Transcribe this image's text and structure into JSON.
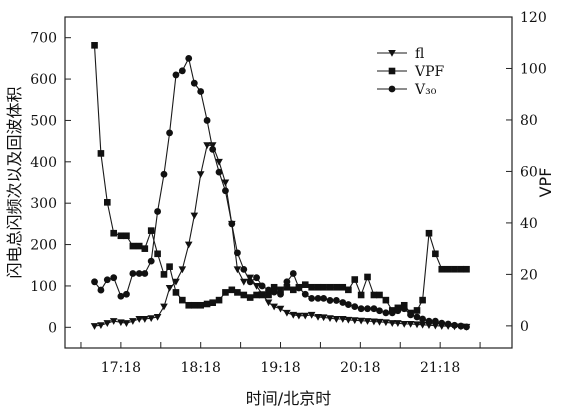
{
  "chart_data": {
    "type": "line",
    "xlabel": "时间/北京时",
    "ylabel_left": "闪电总闪频次以及回波体积",
    "ylabel_right": "VPF",
    "xlim": [
      16.6,
      22.2
    ],
    "ylim_left": [
      -50,
      750
    ],
    "ylim_right": [
      -8.6,
      120
    ],
    "x_ticks": [
      17.3,
      18.3,
      19.3,
      20.3,
      21.3
    ],
    "x_tick_labels": [
      "17:18",
      "18:18",
      "19:18",
      "20:18",
      "21:18"
    ],
    "x_minor_ticks": [
      16.8,
      17.8,
      18.8,
      19.8,
      20.8,
      21.8
    ],
    "y_ticks_left": [
      0,
      100,
      200,
      300,
      400,
      500,
      600,
      700
    ],
    "y_tick_labels_left": [
      "0",
      "100",
      "200",
      "300",
      "400",
      "500",
      "600",
      "700"
    ],
    "y_ticks_right": [
      0,
      20,
      40,
      60,
      80,
      100,
      120
    ],
    "y_tick_labels_right": [
      "0",
      "20",
      "40",
      "60",
      "80",
      "100",
      "120"
    ],
    "legend_position": "top-right",
    "series": [
      {
        "name": "fl",
        "axis": "left",
        "marker": "triangle-down",
        "x": [
          16.97,
          17.05,
          17.13,
          17.21,
          17.3,
          17.37,
          17.45,
          17.53,
          17.6,
          17.68,
          17.76,
          17.84,
          17.91,
          17.99,
          18.07,
          18.15,
          18.22,
          18.3,
          18.38,
          18.45,
          18.53,
          18.61,
          18.69,
          18.76,
          18.84,
          18.92,
          19.0,
          19.07,
          19.15,
          19.22,
          19.3,
          19.38,
          19.46,
          19.53,
          19.61,
          19.69,
          19.77,
          19.84,
          19.92,
          20.0,
          20.08,
          20.15,
          20.23,
          20.31,
          20.39,
          20.47,
          20.54,
          20.62,
          20.7,
          20.77,
          20.85,
          20.93,
          21.01,
          21.08,
          21.16,
          21.24,
          21.32,
          21.4,
          21.48,
          21.56,
          21.63
        ],
        "values": [
          3,
          5,
          10,
          15,
          12,
          10,
          15,
          20,
          20,
          22,
          25,
          50,
          95,
          110,
          140,
          200,
          270,
          370,
          440,
          440,
          400,
          350,
          250,
          140,
          110,
          120,
          100,
          80,
          60,
          50,
          45,
          35,
          30,
          28,
          28,
          30,
          25,
          24,
          22,
          20,
          20,
          18,
          17,
          16,
          15,
          14,
          13,
          12,
          10,
          10,
          8,
          8,
          7,
          6,
          5,
          4,
          3,
          3,
          2,
          2,
          1
        ]
      },
      {
        "name": "VPF",
        "axis": "right",
        "marker": "square",
        "x": [
          16.97,
          17.05,
          17.13,
          17.21,
          17.3,
          17.37,
          17.45,
          17.53,
          17.6,
          17.68,
          17.76,
          17.84,
          17.91,
          17.99,
          18.07,
          18.15,
          18.22,
          18.3,
          18.38,
          18.45,
          18.53,
          18.61,
          18.69,
          18.76,
          18.84,
          18.92,
          19.0,
          19.07,
          19.15,
          19.22,
          19.3,
          19.38,
          19.46,
          19.53,
          19.61,
          19.69,
          19.77,
          19.84,
          19.92,
          20.0,
          20.08,
          20.15,
          20.23,
          20.31,
          20.39,
          20.47,
          20.54,
          20.62,
          20.7,
          20.77,
          20.85,
          20.93,
          21.01,
          21.08,
          21.16,
          21.24,
          21.32,
          21.4,
          21.48,
          21.56,
          21.63
        ],
        "values": [
          109,
          67,
          48,
          36,
          35,
          35,
          31,
          31,
          30,
          37,
          28,
          20,
          23,
          13,
          10,
          8,
          8,
          8,
          8.5,
          9,
          10,
          13,
          14,
          13,
          12,
          11,
          12,
          12,
          12,
          15,
          14,
          15,
          14,
          15,
          16,
          15,
          15,
          15,
          15,
          15,
          15,
          14,
          18,
          12,
          19,
          12,
          12,
          10,
          6,
          7,
          8,
          5,
          6,
          10,
          36,
          28,
          22,
          22,
          22,
          22,
          22
        ]
      },
      {
        "name": "V₃₀",
        "axis": "left",
        "marker": "circle",
        "x": [
          16.97,
          17.05,
          17.13,
          17.21,
          17.3,
          17.37,
          17.45,
          17.53,
          17.6,
          17.68,
          17.76,
          17.84,
          17.91,
          17.99,
          18.07,
          18.15,
          18.22,
          18.3,
          18.38,
          18.45,
          18.53,
          18.61,
          18.69,
          18.76,
          18.84,
          18.92,
          19.0,
          19.07,
          19.15,
          19.22,
          19.3,
          19.38,
          19.46,
          19.53,
          19.61,
          19.69,
          19.77,
          19.84,
          19.92,
          20.0,
          20.08,
          20.15,
          20.23,
          20.31,
          20.39,
          20.47,
          20.54,
          20.62,
          20.7,
          20.77,
          20.85,
          20.93,
          21.01,
          21.08,
          21.16,
          21.24,
          21.32,
          21.4,
          21.48,
          21.56,
          21.63
        ],
        "values": [
          110,
          90,
          115,
          120,
          75,
          80,
          130,
          130,
          130,
          160,
          280,
          370,
          470,
          610,
          620,
          650,
          590,
          570,
          500,
          430,
          375,
          330,
          250,
          180,
          140,
          110,
          120,
          100,
          90,
          85,
          80,
          110,
          130,
          95,
          80,
          70,
          70,
          70,
          65,
          65,
          60,
          55,
          50,
          45,
          45,
          45,
          40,
          35,
          35,
          40,
          45,
          30,
          25,
          20,
          15,
          15,
          10,
          8,
          5,
          3,
          1
        ]
      }
    ]
  }
}
